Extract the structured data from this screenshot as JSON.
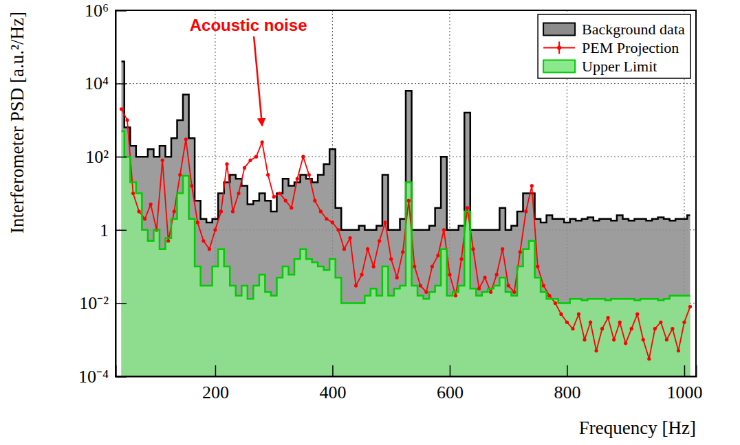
{
  "chart_data": {
    "type": "line",
    "x_label": "Frequency [Hz]",
    "y_label": "Interferometer PSD [a.u.²/Hz]",
    "log": "y",
    "grid": true,
    "legend": "top-right",
    "xlim": [
      30,
      1020
    ],
    "xticks": [
      200,
      400,
      600,
      800,
      1000
    ],
    "ylim": [
      0.0001,
      1000000
    ],
    "yticks": [
      {
        "value": 0.0001,
        "label": "10⁻⁴"
      },
      {
        "value": 0.01,
        "label": "10⁻²"
      },
      1,
      {
        "value": 100,
        "label": "10²"
      },
      {
        "value": 10000,
        "label": "10⁴"
      },
      {
        "value": 1000000,
        "label": "10⁶"
      }
    ],
    "annotations": [
      {
        "text": "Acoustic noise",
        "x": 280,
        "y": 700
      }
    ],
    "x": [
      40,
      50,
      60,
      70,
      80,
      90,
      100,
      110,
      120,
      130,
      140,
      150,
      160,
      170,
      180,
      190,
      200,
      210,
      220,
      230,
      240,
      250,
      260,
      270,
      280,
      290,
      300,
      310,
      320,
      330,
      340,
      350,
      360,
      370,
      380,
      390,
      400,
      410,
      420,
      430,
      440,
      450,
      460,
      470,
      480,
      490,
      500,
      510,
      520,
      530,
      540,
      550,
      560,
      570,
      580,
      590,
      600,
      610,
      620,
      630,
      640,
      650,
      660,
      670,
      680,
      690,
      700,
      710,
      720,
      730,
      740,
      750,
      760,
      770,
      780,
      790,
      800,
      810,
      820,
      830,
      840,
      850,
      860,
      870,
      880,
      890,
      900,
      910,
      920,
      930,
      940,
      950,
      960,
      970,
      980,
      990,
      1000,
      1010
    ],
    "series": [
      {
        "name": "Background data",
        "type": "step",
        "color": "#000000",
        "values": [
          40000,
          630,
          200,
          100,
          100,
          160,
          100,
          200,
          100,
          320,
          1000,
          5000,
          320,
          6.3,
          2,
          1.6,
          2,
          10,
          20,
          32,
          25,
          16,
          5,
          6.3,
          10,
          6.3,
          3.2,
          10,
          25,
          16,
          20,
          32,
          25,
          20,
          32,
          63,
          160,
          4,
          1,
          1,
          1,
          1.3,
          1,
          1,
          1.3,
          32,
          1,
          1,
          2,
          6300,
          1,
          1,
          1,
          1.3,
          4,
          100,
          1,
          1,
          1.3,
          1600,
          1,
          1,
          1,
          1,
          1,
          4,
          1,
          1.3,
          3.2,
          10,
          10,
          2,
          1.6,
          2.5,
          2,
          2,
          1.6,
          2,
          1.8,
          2,
          2.2,
          1.8,
          2,
          2,
          1.8,
          2.5,
          2,
          1.8,
          2,
          2,
          1.8,
          2,
          2.2,
          2,
          1.8,
          2,
          2,
          2.5
        ]
      },
      {
        "name": "PEM Projection",
        "type": "line",
        "color": "#ff0000",
        "marker": "circle",
        "values": [
          2000,
          1000,
          10,
          3.2,
          2,
          5,
          1,
          80,
          0.5,
          3.2,
          32,
          300,
          16,
          1.6,
          0.5,
          0.3,
          1,
          3.2,
          63,
          3.2,
          10,
          50,
          80,
          100,
          250,
          32,
          8,
          10,
          6.3,
          4,
          25,
          100,
          32,
          6.3,
          3.2,
          2,
          1.6,
          1,
          0.3,
          0.6,
          0.03,
          0.06,
          0.3,
          0.1,
          0.5,
          1.6,
          0.16,
          0.05,
          0.25,
          6.3,
          0.1,
          0.03,
          0.02,
          0.1,
          0.2,
          1,
          0.06,
          0.016,
          0.16,
          4,
          0.3,
          0.025,
          0.05,
          0.02,
          0.06,
          0.3,
          0.03,
          0.02,
          0.25,
          3.2,
          16,
          0.1,
          0.03,
          0.016,
          0.01,
          0.005,
          0.003,
          0.002,
          0.005,
          0.001,
          0.003,
          0.0005,
          0.002,
          0.004,
          0.001,
          0.003,
          0.0008,
          0.002,
          0.005,
          0.001,
          0.0003,
          0.002,
          0.003,
          0.001,
          0.002,
          0.0005,
          0.003,
          0.008
        ]
      },
      {
        "name": "Upper Limit",
        "type": "step",
        "color": "#00cc00",
        "values": [
          500,
          100,
          20,
          10,
          1,
          0.5,
          1,
          0.3,
          0.6,
          2,
          10,
          30,
          2,
          0.1,
          0.03,
          0.03,
          0.1,
          0.3,
          0.1,
          0.03,
          0.016,
          0.03,
          0.013,
          0.03,
          0.06,
          0.02,
          0.016,
          0.05,
          0.1,
          0.06,
          0.16,
          0.3,
          0.16,
          0.13,
          0.1,
          0.08,
          0.16,
          0.05,
          0.01,
          0.01,
          0.01,
          0.01,
          0.016,
          0.025,
          0.016,
          0.1,
          0.016,
          0.025,
          0.03,
          20,
          0.03,
          0.016,
          0.013,
          0.02,
          0.03,
          0.3,
          0.016,
          0.02,
          0.03,
          3.2,
          0.025,
          0.016,
          0.02,
          0.025,
          0.03,
          0.05,
          0.02,
          0.016,
          0.1,
          0.3,
          0.5,
          0.05,
          0.02,
          0.013,
          0.013,
          0.01,
          0.01,
          0.013,
          0.013,
          0.012,
          0.013,
          0.013,
          0.013,
          0.012,
          0.013,
          0.013,
          0.013,
          0.013,
          0.012,
          0.013,
          0.013,
          0.013,
          0.012,
          0.013,
          0.016,
          0.016,
          0.016,
          0.016
        ]
      }
    ]
  }
}
